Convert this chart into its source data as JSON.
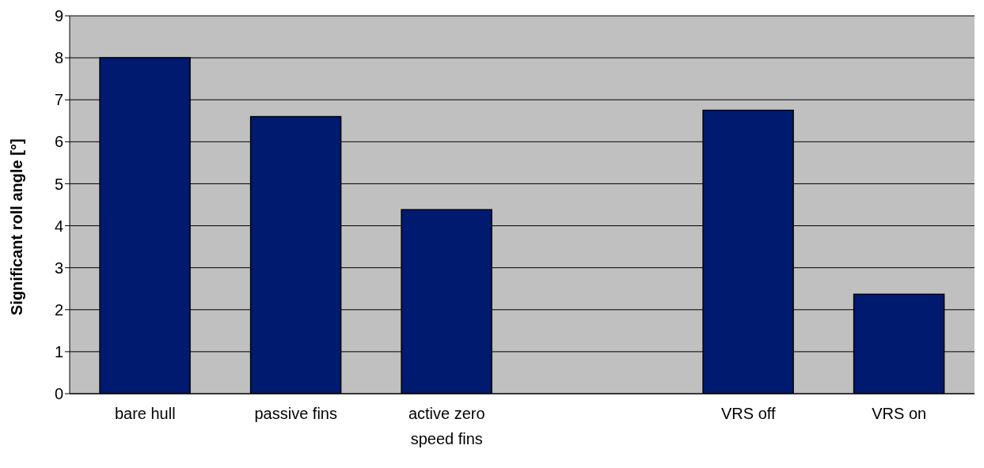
{
  "chart_data": {
    "type": "bar",
    "ylabel": "Significant roll angle [°]",
    "categories": [
      "bare hull",
      "passive fins",
      "active zero speed fins",
      null,
      "VRS off",
      "VRS on"
    ],
    "values": [
      8,
      6.6,
      4.38,
      null,
      6.75,
      2.37
    ],
    "color": "#001a70",
    "ylim": [
      0,
      9
    ],
    "yticks": [
      0,
      1,
      2,
      3,
      4,
      5,
      6,
      7,
      8,
      9
    ],
    "grid": "y",
    "legend": false
  }
}
